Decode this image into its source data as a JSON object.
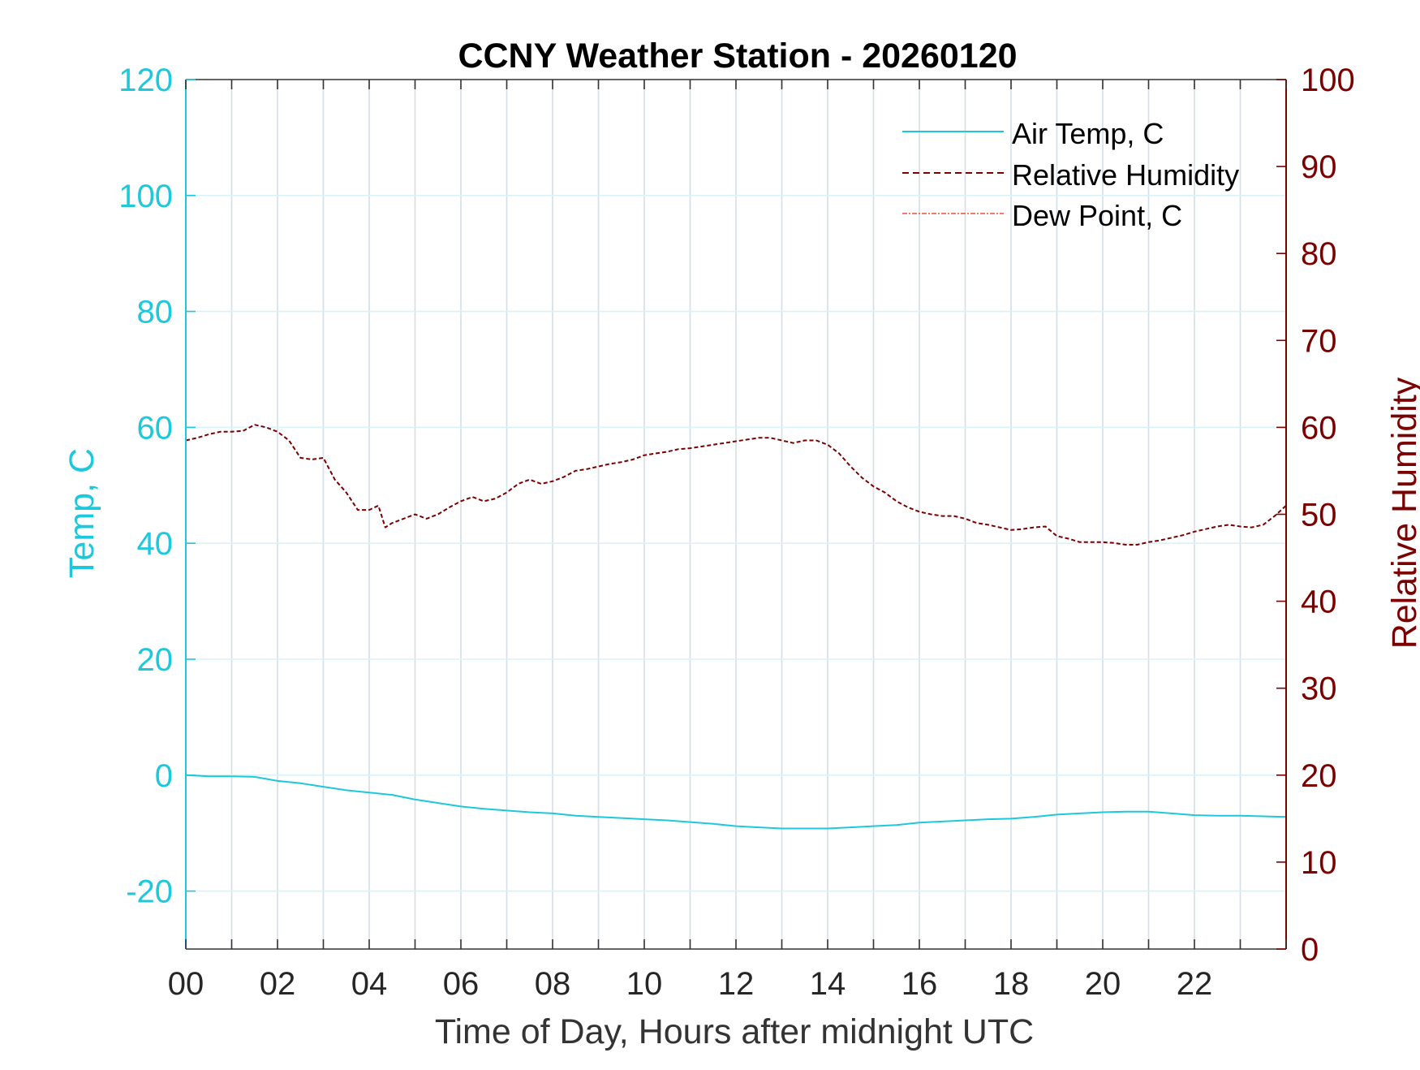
{
  "chart_data": {
    "type": "line",
    "title": "CCNY Weather Station - 20260120",
    "xlabel": "Time of Day, Hours after midnight UTC",
    "ylabel_left": "Temp, C",
    "ylabel_right": "Relative Humidity",
    "xlim": [
      0,
      24
    ],
    "ylim_left": [
      -30,
      120
    ],
    "ylim_right": [
      0,
      100
    ],
    "x_tick_values": [
      0,
      2,
      4,
      6,
      8,
      10,
      12,
      14,
      16,
      18,
      20,
      22
    ],
    "x_tick_labels": [
      "00",
      "02",
      "04",
      "06",
      "08",
      "10",
      "12",
      "14",
      "16",
      "18",
      "20",
      "22"
    ],
    "y_left_ticks": [
      -20,
      0,
      20,
      40,
      60,
      80,
      100,
      120
    ],
    "y_left_tick_labels": [
      "-20",
      "0",
      "20",
      "40",
      "60",
      "80",
      "100",
      "120"
    ],
    "y_right_ticks": [
      0,
      10,
      20,
      30,
      40,
      50,
      60,
      70,
      80,
      90,
      100
    ],
    "y_right_tick_labels": [
      "0",
      "10",
      "20",
      "30",
      "40",
      "50",
      "60",
      "70",
      "80",
      "90",
      "100"
    ],
    "grid": true,
    "legend_position": "top-right",
    "colors": {
      "left_axis": "#1ec8dc",
      "right_axis": "#7b0000",
      "air_temp": "#1ec8dc",
      "humidity": "#7b0000",
      "dew_point": "#e8503c",
      "vertical_grid": "#d6dee6",
      "horizontal_grid": "#d9f2f7"
    },
    "series": [
      {
        "name": "Air Temp, C",
        "axis": "left",
        "style": "solid",
        "x": [
          0,
          0.5,
          1,
          1.5,
          2,
          2.5,
          3,
          3.5,
          4,
          4.5,
          5,
          5.5,
          6,
          6.5,
          7,
          7.5,
          8,
          8.5,
          9,
          9.5,
          10,
          10.5,
          11,
          11.5,
          12,
          12.5,
          13,
          13.5,
          14,
          14.5,
          15,
          15.5,
          16,
          16.5,
          17,
          17.5,
          18,
          18.5,
          19,
          19.5,
          20,
          20.5,
          21,
          21.5,
          22,
          22.5,
          23,
          23.5,
          24
        ],
        "values": [
          0,
          -0.2,
          -0.2,
          -0.3,
          -1,
          -1.4,
          -2,
          -2.6,
          -3,
          -3.4,
          -4.2,
          -4.8,
          -5.4,
          -5.8,
          -6.1,
          -6.4,
          -6.6,
          -7,
          -7.2,
          -7.4,
          -7.6,
          -7.8,
          -8.1,
          -8.4,
          -8.8,
          -9,
          -9.2,
          -9.2,
          -9.2,
          -9,
          -8.8,
          -8.6,
          -8.2,
          -8,
          -7.8,
          -7.6,
          -7.5,
          -7.2,
          -6.8,
          -6.6,
          -6.4,
          -6.3,
          -6.3,
          -6.6,
          -6.9,
          -7,
          -7,
          -7.1,
          -7.2
        ]
      },
      {
        "name": "Relative Humidity",
        "axis": "right",
        "style": "dashed",
        "x": [
          0,
          0.25,
          0.5,
          0.75,
          1,
          1.25,
          1.5,
          1.75,
          2,
          2.25,
          2.5,
          2.75,
          3,
          3.25,
          3.5,
          3.75,
          4,
          4.2,
          4.35,
          4.5,
          4.75,
          5,
          5.25,
          5.5,
          5.75,
          6,
          6.25,
          6.5,
          6.75,
          7,
          7.25,
          7.5,
          7.75,
          8,
          8.25,
          8.5,
          8.75,
          9,
          9.25,
          9.5,
          9.75,
          10,
          10.25,
          10.5,
          10.75,
          11,
          11.25,
          11.5,
          11.75,
          12,
          12.25,
          12.5,
          12.75,
          13,
          13.25,
          13.5,
          13.75,
          14,
          14.25,
          14.5,
          14.75,
          15,
          15.25,
          15.5,
          15.75,
          16,
          16.25,
          16.5,
          16.75,
          17,
          17.25,
          17.5,
          17.75,
          18,
          18.25,
          18.5,
          18.75,
          19,
          19.25,
          19.5,
          19.75,
          20,
          20.25,
          20.5,
          20.75,
          21,
          21.25,
          21.5,
          21.75,
          22,
          22.25,
          22.5,
          22.75,
          23,
          23.25,
          23.5,
          23.75,
          24
        ],
        "values": [
          58.5,
          58.8,
          59.2,
          59.5,
          59.5,
          59.6,
          60.3,
          60,
          59.5,
          58.5,
          56.5,
          56.3,
          56.5,
          54,
          52.5,
          50.5,
          50.5,
          51,
          48.5,
          49,
          49.5,
          50,
          49.5,
          50,
          50.8,
          51.5,
          52,
          51.5,
          51.8,
          52.5,
          53.5,
          54,
          53.5,
          53.8,
          54.3,
          55,
          55.2,
          55.5,
          55.8,
          56,
          56.3,
          56.8,
          57,
          57.2,
          57.5,
          57.6,
          57.8,
          58,
          58.2,
          58.4,
          58.6,
          58.8,
          58.8,
          58.5,
          58.2,
          58.5,
          58.5,
          58,
          57,
          55.5,
          54.2,
          53.2,
          52.5,
          51.5,
          50.8,
          50.3,
          50,
          49.8,
          49.8,
          49.5,
          49,
          48.8,
          48.5,
          48.2,
          48.3,
          48.5,
          48.6,
          47.5,
          47.2,
          46.8,
          46.8,
          46.8,
          46.7,
          46.5,
          46.5,
          46.8,
          47,
          47.3,
          47.6,
          48,
          48.3,
          48.6,
          48.8,
          48.6,
          48.5,
          48.8,
          49.8,
          51
        ]
      },
      {
        "name": "Dew Point, C",
        "axis": "left",
        "style": "dash-dot",
        "x": [],
        "values": []
      }
    ]
  }
}
